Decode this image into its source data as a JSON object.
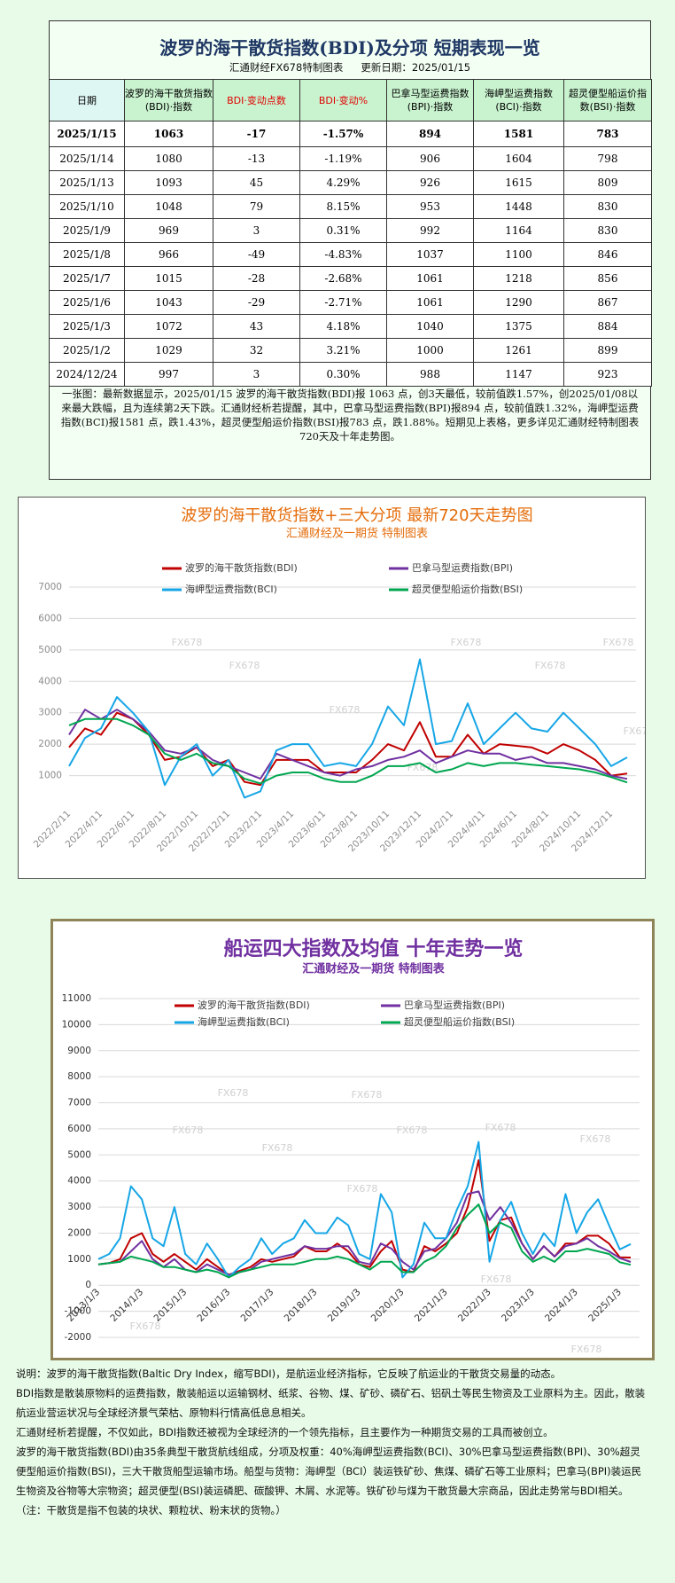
{
  "header": {
    "title": "波罗的海干散货指数(BDI)及分项  短期表现一览",
    "subtitle": "汇通财经FX678特制图表",
    "update_date": "更新日期：2025/01/15"
  },
  "table": {
    "header": [
      "日期",
      "波罗的海干散货指数(BDI)·指数",
      "BDI·变动点数",
      "BDI·变动%",
      "巴拿马型运费指数(BPI)·指数",
      "海岬型运费指数(BCI)·指数",
      "超灵便型船运价指数(BSI)·指数"
    ],
    "rows": [
      [
        "2025/1/15",
        "1063",
        "-17",
        "-1.57%",
        "894",
        "1581",
        "783"
      ],
      [
        "2025/1/14",
        "1080",
        "-13",
        "-1.19%",
        "906",
        "1604",
        "798"
      ],
      [
        "2025/1/13",
        "1093",
        "45",
        "4.29%",
        "926",
        "1615",
        "809"
      ],
      [
        "2025/1/10",
        "1048",
        "79",
        "8.15%",
        "953",
        "1448",
        "830"
      ],
      [
        "2025/1/9",
        "969",
        "3",
        "0.31%",
        "992",
        "1164",
        "830"
      ],
      [
        "2025/1/8",
        "966",
        "-49",
        "-4.83%",
        "1037",
        "1100",
        "846"
      ],
      [
        "2025/1/7",
        "1015",
        "-28",
        "-2.68%",
        "1061",
        "1218",
        "856"
      ],
      [
        "2025/1/6",
        "1043",
        "-29",
        "-2.71%",
        "1061",
        "1290",
        "867"
      ],
      [
        "2025/1/3",
        "1072",
        "43",
        "4.18%",
        "1040",
        "1375",
        "884"
      ],
      [
        "2025/1/2",
        "1029",
        "32",
        "3.21%",
        "1000",
        "1261",
        "899"
      ],
      [
        "2024/12/24",
        "997",
        "3",
        "0.30%",
        "988",
        "1147",
        "923"
      ]
    ]
  },
  "summary": "一张图：最新数据显示，2025/01/15 波罗的海干散货指数(BDI)报 1063 点，创3天最低，较前值跌1.57%，创2025/01/08以来最大跌幅，且为连续第2天下跌。汇通财经析若提醒，其中，巴拿马型运费指数(BPI)报894 点，较前值跌1.32%，海岬型运费指数(BCI)报1581 点，跌1.43%，超灵便型船运价指数(BSI)报783 点，跌1.88%。短期见上表格，更多详见汇通财经特制图表720天及十年走势图。",
  "chart_data": [
    {
      "type": "line",
      "title": "波罗的海干散货指数+三大分项  最新720天走势图",
      "subtitle": "汇通财经及一期货  特制图表",
      "watermark": "FX678",
      "categories": [
        "2022/2/11",
        null,
        "2022/4/11",
        null,
        "2022/6/11",
        null,
        "2022/8/11",
        null,
        "2022/10/11",
        null,
        "2022/12/11",
        null,
        "2023/2/11",
        null,
        "2023/4/11",
        null,
        "2023/6/11",
        null,
        "2023/8/11",
        null,
        "2023/10/11",
        null,
        "2023/12/11",
        null,
        "2024/2/11",
        null,
        "2024/4/11",
        null,
        "2024/6/11",
        null,
        "2024/8/11",
        null,
        "2024/10/11",
        null,
        "2024/12/11",
        null
      ],
      "series": [
        {
          "name": "波罗的海干散货指数(BDI)",
          "color": "#c00000",
          "values": [
            1900,
            2500,
            2300,
            3000,
            2800,
            2300,
            1500,
            1600,
            1900,
            1300,
            1500,
            800,
            700,
            1500,
            1500,
            1500,
            1100,
            1100,
            1100,
            1500,
            2000,
            1800,
            2700,
            1600,
            1600,
            2300,
            1700,
            2000,
            1950,
            1900,
            1700,
            2000,
            1800,
            1500,
            1000,
            1063
          ]
        },
        {
          "name": "巴拿马型运费指数(BPI)",
          "color": "#7030a0",
          "values": [
            2300,
            3100,
            2800,
            3100,
            2800,
            2400,
            1800,
            1700,
            1900,
            1500,
            1300,
            1100,
            900,
            1700,
            1500,
            1300,
            1100,
            1000,
            1200,
            1300,
            1500,
            1600,
            1800,
            1400,
            1600,
            1800,
            1700,
            1700,
            1500,
            1600,
            1400,
            1400,
            1300,
            1200,
            1000,
            894
          ]
        },
        {
          "name": "海岬型运费指数(BCI)",
          "color": "#16a6e6",
          "values": [
            1300,
            2200,
            2500,
            3500,
            3000,
            2400,
            700,
            1600,
            2000,
            1000,
            1500,
            300,
            500,
            1800,
            2000,
            2000,
            1300,
            1400,
            1300,
            2000,
            3200,
            2600,
            4700,
            2000,
            2100,
            3300,
            2000,
            2500,
            3000,
            2500,
            2400,
            3000,
            2500,
            2000,
            1300,
            1581
          ]
        },
        {
          "name": "超灵便型船运价指数(BSI)",
          "color": "#00a650",
          "values": [
            2600,
            2800,
            2800,
            2800,
            2600,
            2300,
            1700,
            1500,
            1700,
            1400,
            1300,
            900,
            750,
            1000,
            1100,
            1100,
            900,
            800,
            800,
            1000,
            1300,
            1300,
            1400,
            1100,
            1200,
            1400,
            1300,
            1400,
            1400,
            1350,
            1300,
            1250,
            1200,
            1100,
            950,
            783
          ]
        }
      ],
      "ylim": [
        0,
        7000
      ],
      "yticks": [
        1000,
        2000,
        3000,
        4000,
        5000,
        6000,
        7000
      ],
      "grid": true
    },
    {
      "type": "line",
      "title": "船运四大指数及均值 十年走势一览",
      "subtitle": "汇通财经及一期货 特制图表",
      "watermark": "FX678",
      "categories": [
        "2013/1/3",
        null,
        null,
        null,
        "2014/1/3",
        null,
        null,
        null,
        "2015/1/3",
        null,
        null,
        null,
        "2016/1/3",
        null,
        null,
        null,
        "2017/1/3",
        null,
        null,
        null,
        "2018/1/3",
        null,
        null,
        null,
        "2019/1/3",
        null,
        null,
        null,
        "2020/1/3",
        null,
        null,
        null,
        "2021/1/3",
        null,
        null,
        null,
        "2022/1/3",
        null,
        null,
        null,
        "2023/1/3",
        null,
        null,
        null,
        "2024/1/3",
        null,
        null,
        null,
        "2025/1/3",
        null
      ],
      "series": [
        {
          "name": "波罗的海干散货指数(BDI)",
          "color": "#c00000",
          "values": [
            800,
            850,
            1000,
            1800,
            2000,
            1200,
            900,
            1200,
            900,
            600,
            1000,
            700,
            400,
            550,
            700,
            1000,
            900,
            1000,
            1100,
            1500,
            1300,
            1300,
            1600,
            1300,
            800,
            700,
            1300,
            1700,
            600,
            500,
            1500,
            1300,
            1600,
            2000,
            3000,
            4800,
            1700,
            2500,
            2600,
            1600,
            1000,
            1500,
            1100,
            1600,
            1600,
            1900,
            1900,
            1600,
            1072,
            1063
          ]
        },
        {
          "name": "巴拿马型运费指数(BPI)",
          "color": "#7030a0",
          "values": [
            800,
            850,
            900,
            1300,
            1700,
            1000,
            700,
            1000,
            600,
            500,
            800,
            600,
            400,
            500,
            600,
            900,
            1000,
            1100,
            1200,
            1500,
            1400,
            1400,
            1500,
            1500,
            900,
            800,
            1600,
            1400,
            900,
            600,
            1300,
            1400,
            1800,
            2400,
            3500,
            3600,
            2500,
            3000,
            2400,
            1600,
            1000,
            1500,
            1100,
            1500,
            1600,
            1800,
            1500,
            1300,
            1040,
            894
          ]
        },
        {
          "name": "海岬型运费指数(BCI)",
          "color": "#16a6e6",
          "values": [
            1000,
            1200,
            1800,
            3800,
            3300,
            1800,
            1500,
            3000,
            1200,
            800,
            1600,
            1000,
            300,
            700,
            1000,
            1800,
            1200,
            1600,
            1800,
            2500,
            2000,
            2000,
            2600,
            2300,
            1200,
            1000,
            3500,
            2800,
            300,
            800,
            2400,
            1800,
            1800,
            2900,
            3800,
            5500,
            900,
            2500,
            3200,
            2000,
            1200,
            2000,
            1500,
            3500,
            2000,
            2800,
            3300,
            2300,
            1375,
            1581
          ]
        },
        {
          "name": "超灵便型船运价指数(BSI)",
          "color": "#00a650",
          "values": [
            800,
            850,
            900,
            1100,
            1000,
            900,
            700,
            700,
            600,
            500,
            600,
            500,
            300,
            500,
            600,
            700,
            800,
            800,
            800,
            900,
            1000,
            1000,
            1100,
            1000,
            800,
            600,
            900,
            900,
            500,
            500,
            900,
            1100,
            1500,
            2200,
            2700,
            3100,
            2000,
            2400,
            2200,
            1300,
            900,
            1100,
            900,
            1300,
            1300,
            1400,
            1300,
            1200,
            884,
            783
          ]
        }
      ],
      "ylim": [
        -2000,
        11000
      ],
      "yticks": [
        -2000,
        -1000,
        0,
        1000,
        2000,
        3000,
        4000,
        5000,
        6000,
        7000,
        8000,
        9000,
        10000,
        11000
      ],
      "grid": true
    }
  ],
  "notes": [
    "说明：波罗的海干散货指数(Baltic Dry Index，缩写BDI)，是航运业经济指标，它反映了航运业的干散货交易量的动态。",
    "BDI指数是散装原物料的运费指数，散装船运以运输钢材、纸浆、谷物、煤、矿砂、磷矿石、铝矾土等民生物资及工业原料为主。因此，散装航运业营运状况与全球经济景气荣枯、原物料行情高低息息相关。",
    "汇通财经析若提醒，不仅如此，BDI指数还被视为全球经济的一个领先指标，且主要作为一种期货交易的工具而被创立。",
    "波罗的海干散货指数(BDI)由35条典型干散货航线组成，分项及权重：40%海岬型运费指数(BCI)、30%巴拿马型运费指数(BPI)、30%超灵便型船运价指数(BSI)，三大干散货船型运输市场。船型与货物：海岬型（BCI）装运铁矿砂、焦煤、磷矿石等工业原料；巴拿马(BPI)装运民生物资及谷物等大宗物资；超灵便型(BSI)装运磷肥、碳酸钾、木屑、水泥等。铁矿砂与煤为干散货最大宗商品，因此走势常与BDI相关。（注：干散货是指不包装的块状、颗粒状、粉末状的货物。）"
  ]
}
